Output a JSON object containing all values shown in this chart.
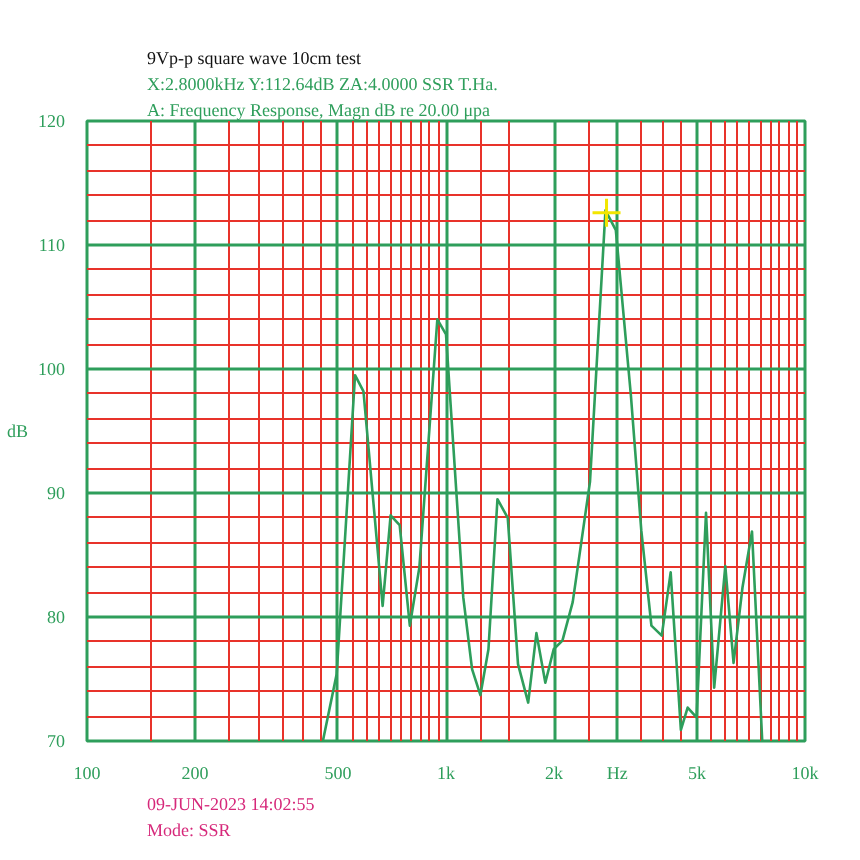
{
  "chart_data": {
    "type": "line",
    "title": "9Vp-p    square    wave    10cm    test",
    "subtitle": "X:2.8000kHz   Y:112.64dB    ZA:4.0000      SSR T.Ha.",
    "annotations": [
      "A: Frequency Response, Magn dB re 20.00  μpa",
      "09-JUN-2023 14:02:55",
      "Mode: SSR"
    ],
    "ylabel": "dB",
    "log": "x",
    "xlim": [
      100,
      10000
    ],
    "ylim": [
      70,
      120
    ],
    "xticks": [
      100,
      {
        "value": 150,
        "label": null
      },
      200,
      {
        "value": 250,
        "label": null
      },
      {
        "value": 300,
        "label": null
      },
      {
        "value": 350,
        "label": null
      },
      {
        "value": 400,
        "label": null
      },
      {
        "value": 450,
        "label": null
      },
      500,
      {
        "value": 550,
        "label": null
      },
      {
        "value": 600,
        "label": null
      },
      {
        "value": 650,
        "label": null
      },
      {
        "value": 700,
        "label": null
      },
      {
        "value": 750,
        "label": null
      },
      {
        "value": 800,
        "label": null
      },
      {
        "value": 850,
        "label": null
      },
      {
        "value": 900,
        "label": null
      },
      {
        "value": 950,
        "label": null
      },
      {
        "value": 1000,
        "label": "1k"
      },
      {
        "value": 1250,
        "label": null
      },
      {
        "value": 1500,
        "label": null
      },
      {
        "value": 2000,
        "label": "2k"
      },
      {
        "value": 2500,
        "label": null
      },
      {
        "value": 3000,
        "label": "Hz"
      },
      {
        "value": 3500,
        "label": null
      },
      {
        "value": 4000,
        "label": null
      },
      {
        "value": 4500,
        "label": null
      },
      {
        "value": 5000,
        "label": "5k"
      },
      {
        "value": 5500,
        "label": null
      },
      {
        "value": 6000,
        "label": null
      },
      {
        "value": 6500,
        "label": null
      },
      {
        "value": 7000,
        "label": null
      },
      {
        "value": 7500,
        "label": null
      },
      {
        "value": 8000,
        "label": null
      },
      {
        "value": 8500,
        "label": null
      },
      {
        "value": 9000,
        "label": null
      },
      {
        "value": 9500,
        "label": null
      },
      {
        "value": 10000,
        "label": "10k"
      }
    ],
    "yticks": [
      70,
      {
        "value": 72,
        "label": null
      },
      {
        "value": 74,
        "label": null
      },
      {
        "value": 76,
        "label": null
      },
      {
        "value": 78,
        "label": null
      },
      80,
      {
        "value": 82,
        "label": null
      },
      {
        "value": 84,
        "label": null
      },
      {
        "value": 86,
        "label": null
      },
      {
        "value": 88,
        "label": null
      },
      90,
      {
        "value": 92,
        "label": null
      },
      {
        "value": 94,
        "label": null
      },
      {
        "value": 96,
        "label": null
      },
      {
        "value": 98,
        "label": null
      },
      100,
      {
        "value": 102,
        "label": null
      },
      {
        "value": 104,
        "label": null
      },
      {
        "value": 106,
        "label": null
      },
      {
        "value": 108,
        "label": null
      },
      110,
      {
        "value": 112,
        "label": null
      },
      {
        "value": 114,
        "label": null
      },
      {
        "value": 116,
        "label": null
      },
      {
        "value": 118,
        "label": null
      },
      120
    ],
    "grid": true,
    "series": [
      {
        "color": "#2e9e5b",
        "x": [
          454,
          496,
          558,
          589,
          666,
          701,
          743,
          793,
          843,
          946,
          1000,
          1117,
          1182,
          1247,
          1313,
          1391,
          1486,
          1587,
          1694,
          1786,
          1891,
          1995,
          2110,
          2254,
          2518,
          2781,
          2972,
          3273,
          3499,
          3734,
          3990,
          4225,
          4511,
          4711,
          4989,
          5300,
          5585,
          5998,
          6324,
          6698,
          7118,
          7601
        ],
        "values": [
          70,
          75.4,
          99.5,
          98.2,
          80.9,
          88.2,
          87.4,
          79.3,
          84,
          104,
          102.8,
          81.6,
          75.8,
          73.7,
          77.4,
          89.5,
          88,
          76.2,
          73.1,
          78.7,
          74.7,
          77.4,
          78.1,
          81.2,
          90.9,
          112.8,
          111.2,
          97.9,
          87,
          79.3,
          78.5,
          83.6,
          70.9,
          72.7,
          71.9,
          88.4,
          74.3,
          84.1,
          76.3,
          82.4,
          86.9,
          70
        ]
      },
      {
        "type": "scatter",
        "marker": "cross",
        "color": "#f2e600",
        "x": [
          2800
        ],
        "values": [
          112.6
        ]
      }
    ]
  }
}
